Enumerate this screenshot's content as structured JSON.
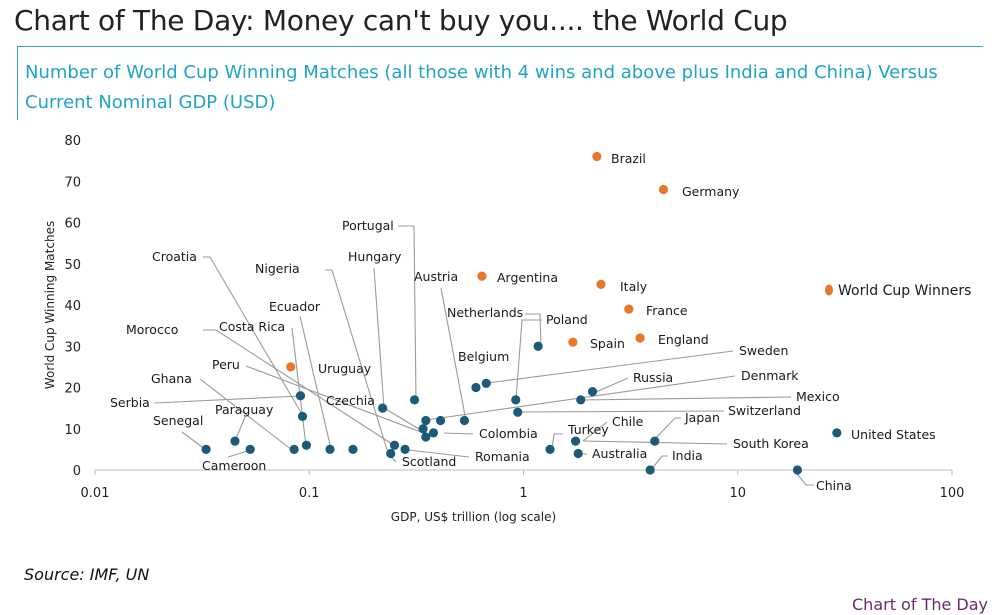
{
  "header": {
    "title": "Chart of The Day: Money can't buy you.... the World Cup",
    "subtitle": "Number of World Cup Winning Matches (all those with 4 wins and above plus India and China) Versus Current Nominal GDP (USD)"
  },
  "footer": {
    "source": "Source: IMF, UN",
    "brand": "Chart of The Day"
  },
  "colors": {
    "winner": "#e8762b",
    "other": "#1b5a78",
    "leader": "#9a9a9a",
    "axis": "#bdbdbd",
    "subtitle": "#1fa4c9",
    "brand": "#6a2a6e"
  },
  "chart_data": {
    "type": "scatter",
    "xlabel": "GDP, US$ trillion (log scale)",
    "ylabel": "World Cup Winning Matches",
    "xscale": "log",
    "xlim": [
      0.01,
      100
    ],
    "ylim": [
      0,
      80
    ],
    "xticks": [
      "0.01",
      "0.1",
      "1",
      "10",
      "100"
    ],
    "yticks": [
      "0",
      "10",
      "20",
      "30",
      "40",
      "50",
      "60",
      "70",
      "80"
    ],
    "grid": false,
    "legend": {
      "position": "right",
      "entries": [
        "World Cup Winners"
      ]
    },
    "series": [
      {
        "name": "World Cup Winners",
        "color": "#e8762b",
        "points": [
          {
            "label": "Brazil",
            "x": 2.2,
            "y": 76
          },
          {
            "label": "Germany",
            "x": 4.5,
            "y": 68
          },
          {
            "label": "Italy",
            "x": 2.3,
            "y": 45
          },
          {
            "label": "France",
            "x": 3.1,
            "y": 39
          },
          {
            "label": "England",
            "x": 3.5,
            "y": 32
          },
          {
            "label": "Spain",
            "x": 1.7,
            "y": 31
          },
          {
            "label": "Argentina",
            "x": 0.64,
            "y": 47
          },
          {
            "label": "Uruguay",
            "x": 0.082,
            "y": 25
          }
        ]
      },
      {
        "name": "",
        "color": "#1b5a78",
        "points": [
          {
            "label": "United States",
            "x": 29,
            "y": 9
          },
          {
            "label": "China",
            "x": 19,
            "y": 0
          },
          {
            "label": "India",
            "x": 3.9,
            "y": 0
          },
          {
            "label": "Japan",
            "x": 4.1,
            "y": 7
          },
          {
            "label": "Netherlands",
            "x": 1.17,
            "y": 30
          },
          {
            "label": "Belgium",
            "x": 0.67,
            "y": 21
          },
          {
            "label": "Poland",
            "x": 0.92,
            "y": 17
          },
          {
            "label": "Sweden",
            "x": 0.6,
            "y": 20
          },
          {
            "label": "Russia",
            "x": 2.1,
            "y": 19
          },
          {
            "label": "Denmark",
            "x": 0.41,
            "y": 12
          },
          {
            "label": "Mexico",
            "x": 1.85,
            "y": 17
          },
          {
            "label": "Switzerland",
            "x": 0.94,
            "y": 14
          },
          {
            "label": "Portugal",
            "x": 0.31,
            "y": 17
          },
          {
            "label": "Hungary",
            "x": 0.22,
            "y": 15
          },
          {
            "label": "Austria",
            "x": 0.53,
            "y": 12
          },
          {
            "label": "Croatia",
            "x": 0.093,
            "y": 13
          },
          {
            "label": "Nigeria",
            "x": 0.25,
            "y": 6
          },
          {
            "label": "Ecuador",
            "x": 0.125,
            "y": 5
          },
          {
            "label": "Costa Rica",
            "x": 0.097,
            "y": 6
          },
          {
            "label": "Morocco",
            "x": 0.16,
            "y": 5
          },
          {
            "label": "Peru",
            "x": 0.28,
            "y": 5
          },
          {
            "label": "Czechia",
            "x": 0.35,
            "y": 12
          },
          {
            "label": "Colombia",
            "x": 0.38,
            "y": 9
          },
          {
            "label": "Romania",
            "x": 0.35,
            "y": 8
          },
          {
            "label": "Scotland",
            "x": 0.24,
            "y": 4
          },
          {
            "label": "Serbia",
            "x": 0.091,
            "y": 18
          },
          {
            "label": "Ghana",
            "x": 0.085,
            "y": 5
          },
          {
            "label": "Paraguay",
            "x": 0.045,
            "y": 7
          },
          {
            "label": "Senegal",
            "x": 0.033,
            "y": 5
          },
          {
            "label": "Cameroon",
            "x": 0.053,
            "y": 5
          },
          {
            "label": "Turkey",
            "x": 1.33,
            "y": 5
          },
          {
            "label": "Chile",
            "x": 0.34,
            "y": 10
          },
          {
            "label": "Australia",
            "x": 1.8,
            "y": 4
          },
          {
            "label": "South Korea",
            "x": 1.75,
            "y": 7
          }
        ]
      }
    ]
  }
}
